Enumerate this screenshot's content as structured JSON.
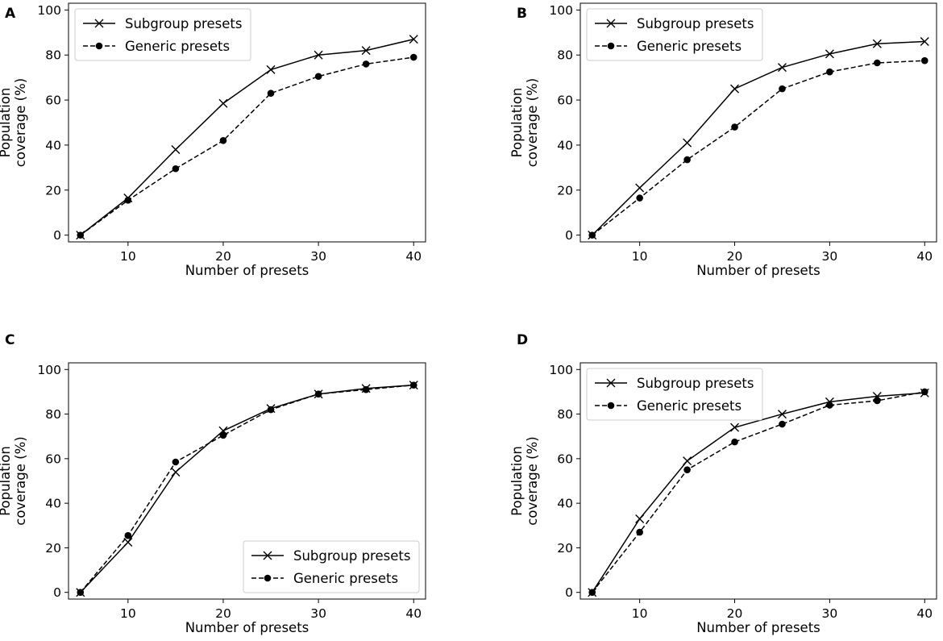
{
  "chart_data": [
    {
      "panel_label": "A",
      "type": "line",
      "xlabel": "Number of presets",
      "ylabel_lines": [
        "Population",
        "coverage (%)"
      ],
      "xlim": [
        3.75,
        41.25
      ],
      "ylim": [
        -3,
        103
      ],
      "xticks": [
        10,
        20,
        30,
        40
      ],
      "yticks": [
        0,
        20,
        40,
        60,
        80,
        100
      ],
      "x": [
        5,
        10,
        15,
        20,
        25,
        30,
        35,
        40
      ],
      "legend_position": "upper left",
      "series": [
        {
          "name": "Subgroup presets",
          "style": "solid",
          "marker": "x",
          "values": [
            0,
            16.5,
            38,
            58.5,
            73.5,
            80,
            82,
            87
          ]
        },
        {
          "name": "Generic presets",
          "style": "dashed",
          "marker": "o",
          "values": [
            0,
            15.5,
            29.5,
            42,
            63,
            70.5,
            76,
            79
          ]
        }
      ]
    },
    {
      "panel_label": "B",
      "type": "line",
      "xlabel": "Number of presets",
      "ylabel_lines": [
        "Population",
        "coverage (%)"
      ],
      "xlim": [
        3.75,
        41.25
      ],
      "ylim": [
        -3,
        103
      ],
      "xticks": [
        10,
        20,
        30,
        40
      ],
      "yticks": [
        0,
        20,
        40,
        60,
        80,
        100
      ],
      "x": [
        5,
        10,
        15,
        20,
        25,
        30,
        35,
        40
      ],
      "legend_position": "upper left",
      "series": [
        {
          "name": "Subgroup presets",
          "style": "solid",
          "marker": "x",
          "values": [
            0,
            21,
            41,
            65,
            74.5,
            80.5,
            85,
            86
          ]
        },
        {
          "name": "Generic presets",
          "style": "dashed",
          "marker": "o",
          "values": [
            0,
            16.5,
            33.5,
            48,
            65,
            72.5,
            76.5,
            77.5
          ]
        }
      ]
    },
    {
      "panel_label": "C",
      "type": "line",
      "xlabel": "Number of presets",
      "ylabel_lines": [
        "Population",
        "coverage (%)"
      ],
      "xlim": [
        3.75,
        41.25
      ],
      "ylim": [
        -3,
        103
      ],
      "xticks": [
        10,
        20,
        30,
        40
      ],
      "yticks": [
        0,
        20,
        40,
        60,
        80,
        100
      ],
      "x": [
        5,
        10,
        15,
        20,
        25,
        30,
        35,
        40
      ],
      "legend_position": "lower right",
      "series": [
        {
          "name": "Subgroup presets",
          "style": "solid",
          "marker": "x",
          "values": [
            0,
            22.5,
            54,
            72.5,
            82.5,
            89,
            91.5,
            93
          ]
        },
        {
          "name": "Generic presets",
          "style": "dashed",
          "marker": "o",
          "values": [
            0,
            25.5,
            58.5,
            70.5,
            82,
            89,
            91,
            93
          ]
        }
      ]
    },
    {
      "panel_label": "D",
      "type": "line",
      "xlabel": "Number of presets",
      "ylabel_lines": [
        "Population",
        "coverage (%)"
      ],
      "xlim": [
        3.75,
        41.25
      ],
      "ylim": [
        -3,
        103
      ],
      "xticks": [
        10,
        20,
        30,
        40
      ],
      "yticks": [
        0,
        20,
        40,
        60,
        80,
        100
      ],
      "x": [
        5,
        10,
        15,
        20,
        25,
        30,
        35,
        40
      ],
      "legend_position": "upper left",
      "series": [
        {
          "name": "Subgroup presets",
          "style": "solid",
          "marker": "x",
          "values": [
            0,
            33,
            59,
            74,
            80,
            85.5,
            88,
            89.5
          ]
        },
        {
          "name": "Generic presets",
          "style": "dashed",
          "marker": "o",
          "values": [
            0,
            27,
            55,
            67.5,
            75.5,
            84,
            86,
            90
          ]
        }
      ]
    }
  ]
}
